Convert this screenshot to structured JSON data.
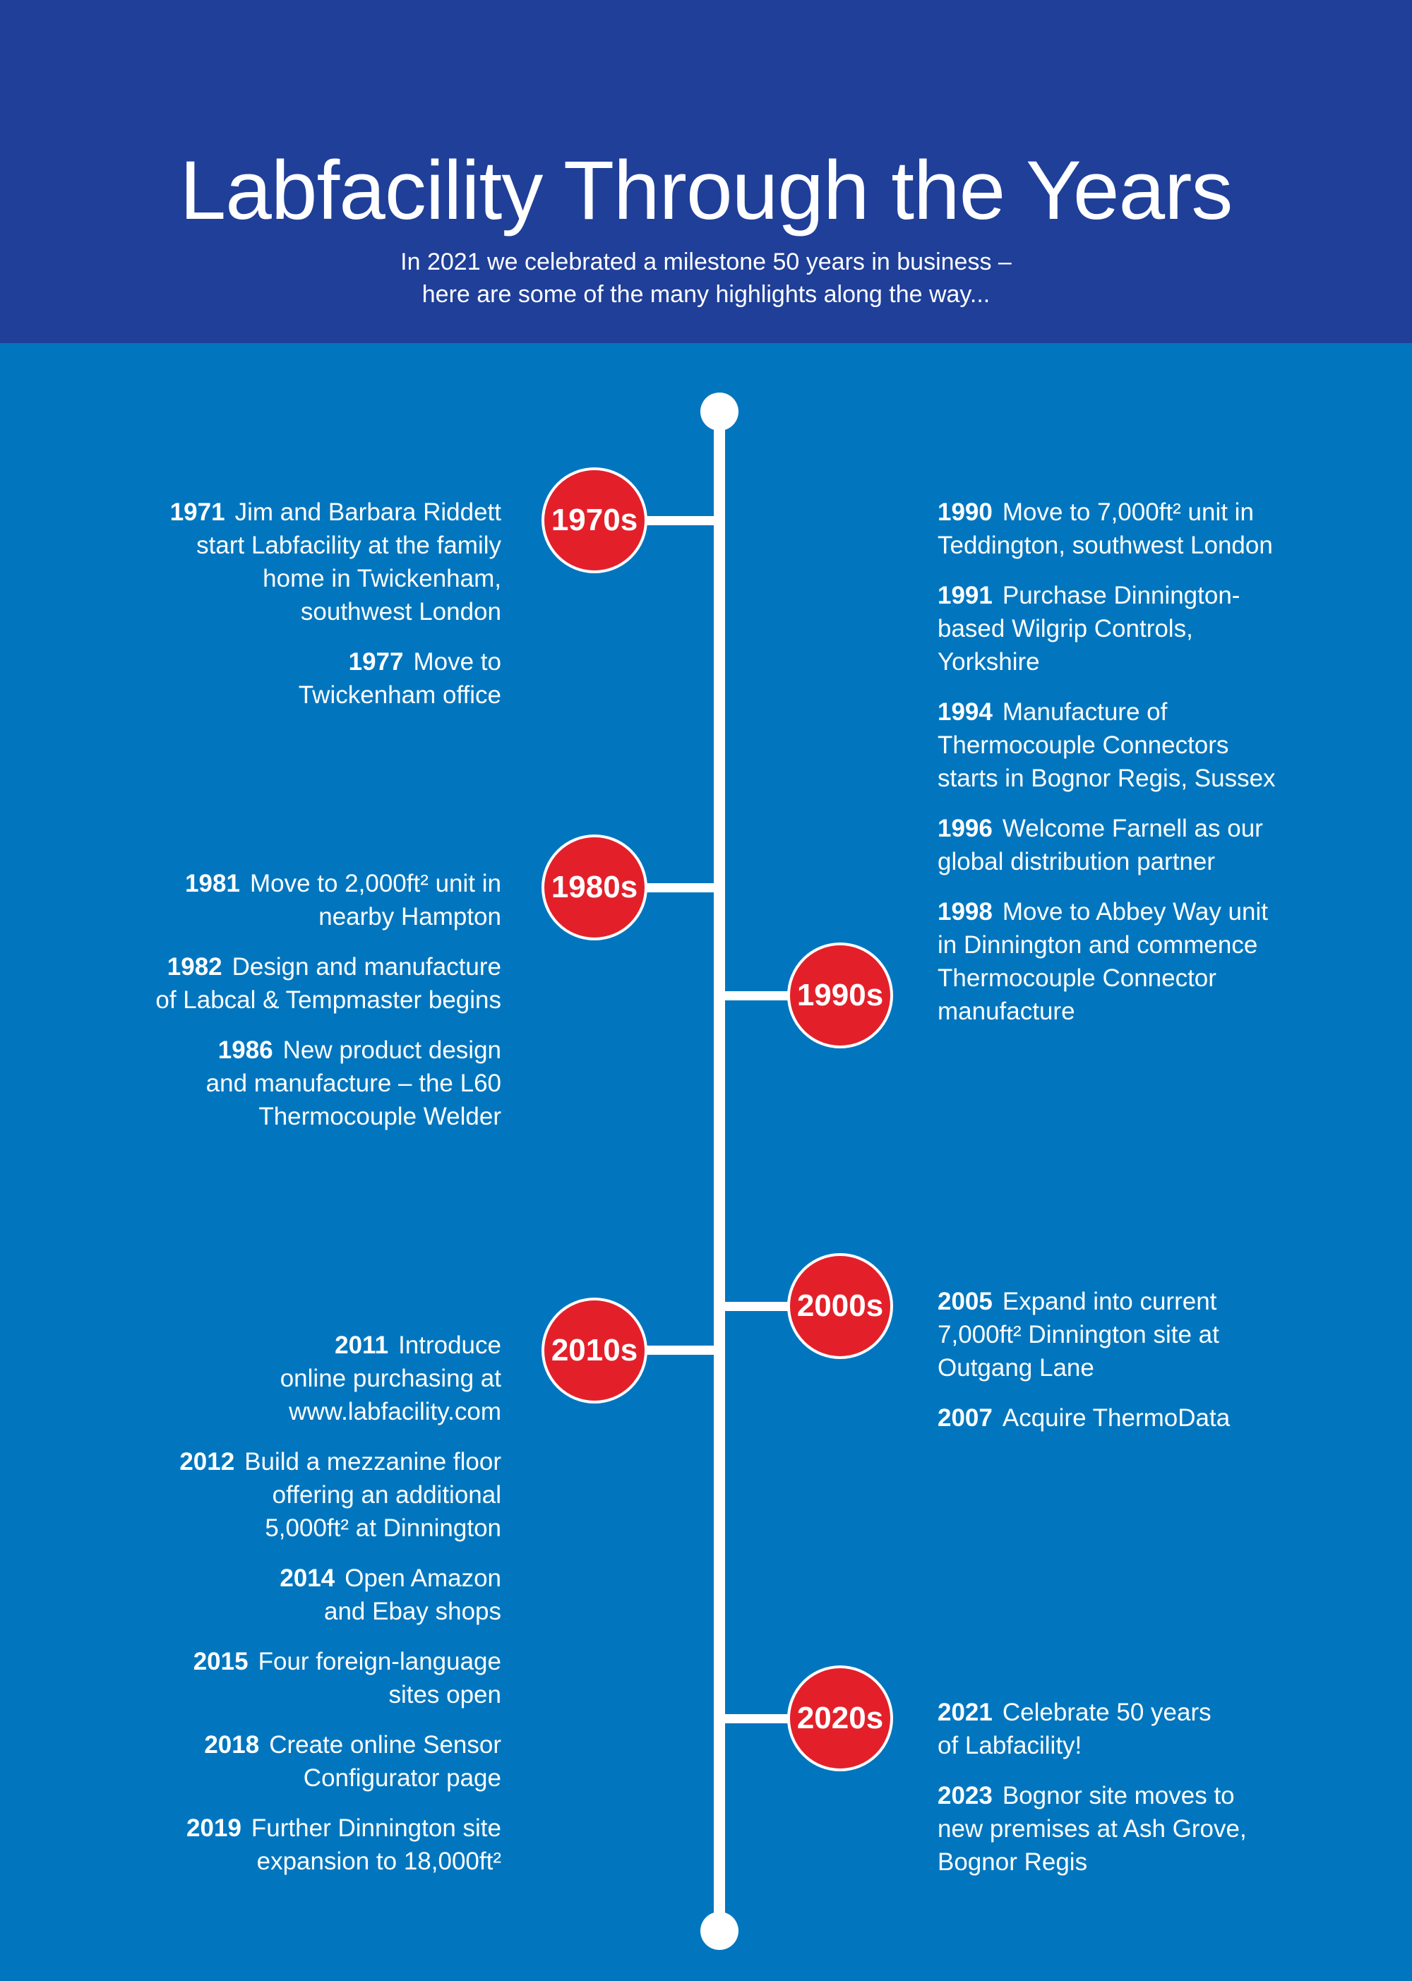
{
  "header": {
    "title": "Labfacility Through the Years",
    "subtitle_line1": "In 2021 we celebrated a milestone 50 years in business –",
    "subtitle_line2": "here are some of the many highlights along the way..."
  },
  "colors": {
    "header_bg": "#1f3f99",
    "page_bg": "#0176bf",
    "decade_circle": "#e3202a",
    "line": "#ffffff"
  },
  "decades": {
    "d1970": "1970s",
    "d1980": "1980s",
    "d1990": "1990s",
    "d2000": "2000s",
    "d2010": "2010s",
    "d2020": "2020s"
  },
  "left_1970s": [
    {
      "year": "1971",
      "lines": [
        "Jim and Barbara Riddett",
        "start Labfacility at the family",
        "home in Twickenham,",
        "southwest London"
      ]
    },
    {
      "year": "1977",
      "lines": [
        "Move to",
        "Twickenham office"
      ]
    }
  ],
  "left_1980s": [
    {
      "year": "1981",
      "lines": [
        "Move to 2,000ft² unit in",
        "nearby Hampton"
      ]
    },
    {
      "year": "1982",
      "lines": [
        "Design and manufacture",
        "of Labcal & Tempmaster begins"
      ]
    },
    {
      "year": "1986",
      "lines": [
        "New product design",
        "and manufacture – the L60",
        "Thermocouple Welder"
      ]
    }
  ],
  "left_2010s": [
    {
      "year": "2011",
      "lines": [
        "Introduce",
        "online purchasing at",
        "www.labfacility.com"
      ]
    },
    {
      "year": "2012",
      "lines": [
        "Build a mezzanine floor",
        "offering an additional",
        "5,000ft² at Dinnington"
      ]
    },
    {
      "year": "2014",
      "lines": [
        "Open Amazon",
        "and Ebay shops"
      ]
    },
    {
      "year": "2015",
      "lines": [
        "Four foreign-language",
        "sites open"
      ]
    },
    {
      "year": "2018",
      "lines": [
        "Create online Sensor",
        "Configurator page"
      ]
    },
    {
      "year": "2019",
      "lines": [
        "Further Dinnington site",
        "expansion to 18,000ft²"
      ]
    }
  ],
  "right_1990s": [
    {
      "year": "1990",
      "lines": [
        "Move to 7,000ft² unit in",
        "Teddington, southwest London"
      ]
    },
    {
      "year": "1991",
      "lines": [
        "Purchase Dinnington-",
        "based Wilgrip Controls,",
        "Yorkshire"
      ]
    },
    {
      "year": "1994",
      "lines": [
        "Manufacture of",
        "Thermocouple Connectors",
        "starts in Bognor Regis, Sussex"
      ]
    },
    {
      "year": "1996",
      "lines": [
        "Welcome Farnell as our",
        "global distribution partner"
      ]
    },
    {
      "year": "1998",
      "lines": [
        "Move to Abbey Way unit",
        "in Dinnington and commence",
        "Thermocouple Connector",
        "manufacture"
      ]
    }
  ],
  "right_2000s": [
    {
      "year": "2005",
      "lines": [
        "Expand into current",
        "7,000ft² Dinnington site at",
        "Outgang Lane"
      ]
    },
    {
      "year": "2007",
      "lines": [
        "Acquire ThermoData"
      ]
    }
  ],
  "right_2020s": [
    {
      "year": "2021",
      "lines": [
        "Celebrate 50 years",
        "of Labfacility!"
      ]
    },
    {
      "year": "2023",
      "lines": [
        "Bognor site moves to",
        "new premises at Ash Grove,",
        "Bognor Regis"
      ]
    }
  ]
}
